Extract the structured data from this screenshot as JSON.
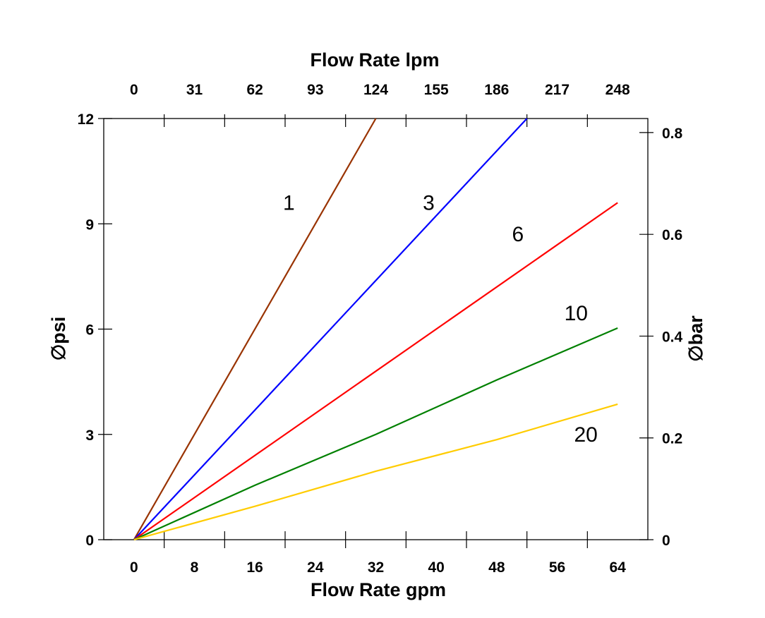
{
  "chart_data": {
    "type": "line",
    "title": "",
    "xlabel_bottom": "Flow Rate gpm",
    "xlabel_top": "Flow Rate lpm",
    "ylabel_left": "∅psi",
    "ylabel_right": "∅bar",
    "xlim": [
      -4,
      68
    ],
    "ylim": [
      0,
      12
    ],
    "y2lim": [
      0,
      0.8276
    ],
    "grid": false,
    "legend": "none",
    "x_ticks": [
      "0",
      "8",
      "16",
      "24",
      "32",
      "40",
      "48",
      "56",
      "64"
    ],
    "x_tick_values": [
      0,
      8,
      16,
      24,
      32,
      40,
      48,
      56,
      64
    ],
    "x_top_ticks": [
      "0",
      "31",
      "62",
      "93",
      "124",
      "155",
      "186",
      "217",
      "248"
    ],
    "y_ticks": [
      "0",
      "3",
      "6",
      "9",
      "12"
    ],
    "y_tick_values": [
      0,
      3,
      6,
      9,
      12
    ],
    "y2_ticks": [
      "0",
      "0.2",
      "0.4",
      "0.6",
      "0.8"
    ],
    "y2_tick_values": [
      0,
      0.2,
      0.4,
      0.6,
      0.8
    ],
    "series": [
      {
        "name": "1",
        "color": "#993300",
        "points": [
          [
            0,
            0
          ],
          [
            32,
            12
          ]
        ],
        "label_at": [
          20.5,
          9.6
        ]
      },
      {
        "name": "3",
        "color": "#0000ff",
        "points": [
          [
            0,
            0
          ],
          [
            52,
            12
          ]
        ],
        "label_at": [
          39,
          9.6
        ]
      },
      {
        "name": "6",
        "color": "#ff0000",
        "points": [
          [
            0,
            0
          ],
          [
            64,
            9.6
          ]
        ],
        "label_at": [
          50.8,
          8.7
        ]
      },
      {
        "name": "10",
        "color": "#008000",
        "points": [
          [
            0,
            0
          ],
          [
            16,
            1.55
          ],
          [
            32,
            3.0
          ],
          [
            48,
            4.55
          ],
          [
            64,
            6.03
          ]
        ],
        "label_at": [
          58.5,
          6.45
        ]
      },
      {
        "name": "20",
        "color": "#ffcc00",
        "points": [
          [
            0,
            0
          ],
          [
            16,
            0.95
          ],
          [
            32,
            1.95
          ],
          [
            48,
            2.85
          ],
          [
            64,
            3.86
          ]
        ],
        "label_at": [
          59.8,
          3.0
        ]
      }
    ]
  }
}
